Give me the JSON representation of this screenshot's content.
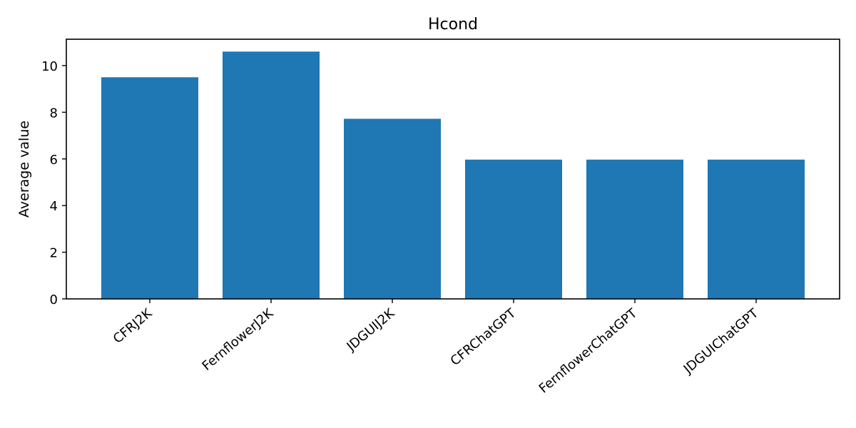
{
  "chart_data": {
    "type": "bar",
    "title": "Hcond",
    "xlabel": "",
    "ylabel": "Average value",
    "categories": [
      "CFRJ2K",
      "FernflowerJ2K",
      "JDGUIJ2K",
      "CFRChatGPT",
      "FernflowerChatGPT",
      "JDGUIChatGPT"
    ],
    "values": [
      9.5,
      10.6,
      7.72,
      5.97,
      5.97,
      5.97
    ],
    "yticks": [
      0,
      2,
      4,
      6,
      8,
      10
    ],
    "ylim": [
      0,
      11.13
    ],
    "grid": false,
    "legend": "none",
    "bar_color": "#1f77b4"
  }
}
